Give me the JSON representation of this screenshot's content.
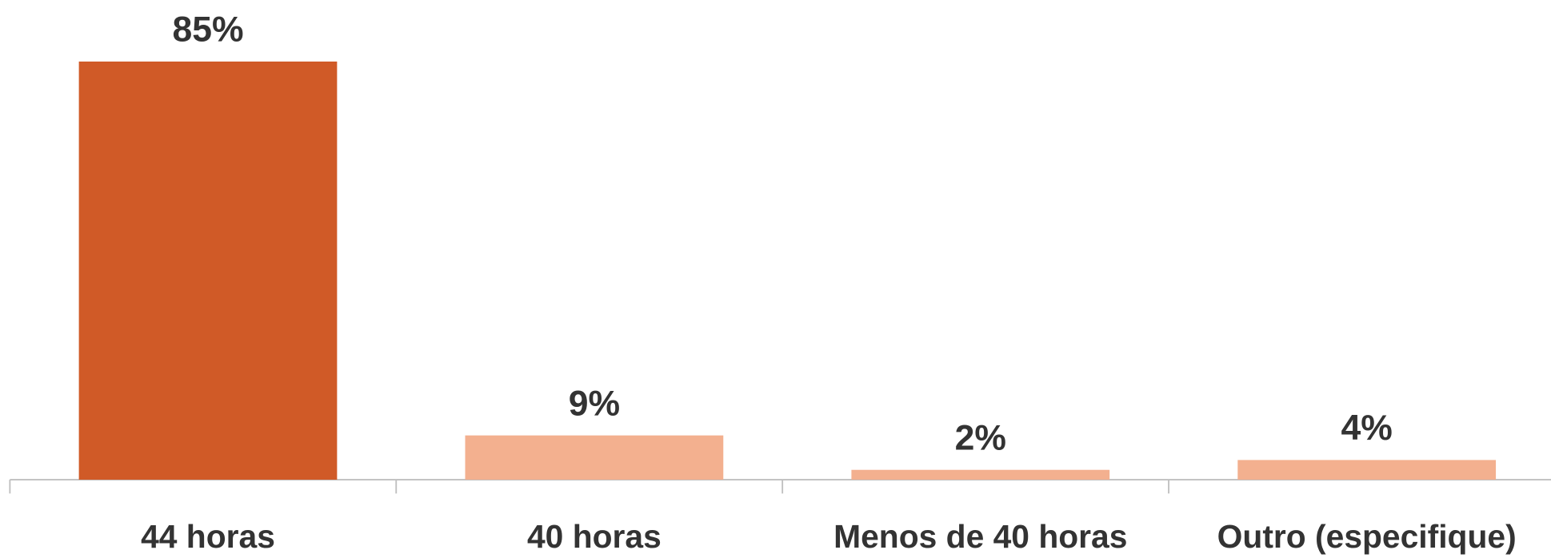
{
  "chart_data": {
    "type": "bar",
    "categories": [
      "44 horas",
      "40 horas",
      "Menos de 40 horas",
      "Outro (especifique)"
    ],
    "values": [
      85,
      9,
      2,
      4
    ],
    "value_labels": [
      "85%",
      "9%",
      "2%",
      "4%"
    ],
    "colors": [
      "#d05a27",
      "#f3b08f",
      "#f3b08f",
      "#f3b08f"
    ],
    "ylim": [
      0,
      100
    ]
  }
}
